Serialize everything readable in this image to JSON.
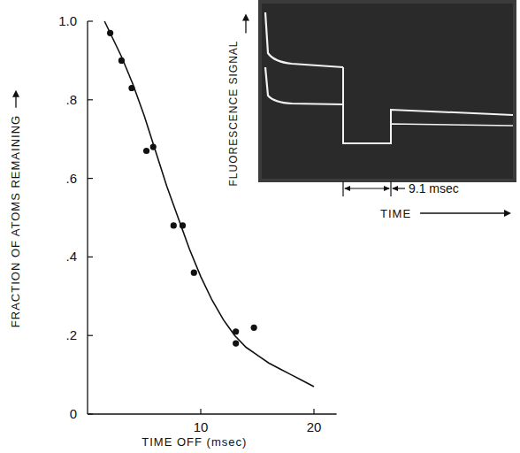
{
  "chart_data": {
    "type": "scatter",
    "x_label": "TIME OFF (msec)",
    "y_label": "FRACTION OF ATOMS REMAINING",
    "xlim": [
      0,
      22
    ],
    "ylim": [
      0,
      1.0
    ],
    "xticks": [
      10,
      20
    ],
    "yticks": [
      0,
      {
        "value": 0.2,
        "label": ".2"
      },
      {
        "value": 0.4,
        "label": ".4"
      },
      {
        "value": 0.6,
        "label": ".6"
      },
      {
        "value": 0.8,
        "label": ".8"
      },
      {
        "value": 1.0,
        "label": "1.0"
      }
    ],
    "grid": false,
    "series": [
      {
        "type": "scatter",
        "marker": "circle",
        "color": "#111111",
        "x": [
          2.0,
          3.0,
          3.9,
          5.2,
          5.8,
          7.6,
          8.4,
          9.4,
          13.1,
          13.1,
          14.7
        ],
        "values": [
          0.97,
          0.9,
          0.83,
          0.67,
          0.68,
          0.48,
          0.48,
          0.36,
          0.21,
          0.18,
          0.22
        ]
      },
      {
        "type": "line",
        "line_style": "solid",
        "color": "#111111",
        "x": [
          1.5,
          3,
          4,
          5,
          6,
          7,
          8,
          9,
          10,
          11,
          12,
          13,
          14,
          15,
          16,
          17,
          18,
          19,
          20
        ],
        "values": [
          1.0,
          0.91,
          0.84,
          0.76,
          0.67,
          0.58,
          0.5,
          0.42,
          0.35,
          0.29,
          0.24,
          0.2,
          0.17,
          0.15,
          0.13,
          0.115,
          0.1,
          0.085,
          0.07
        ]
      }
    ],
    "inset": {
      "y_label": "FLUORESCENCE SIGNAL",
      "x_label": "TIME",
      "interval_label": "9.1 msec"
    }
  }
}
